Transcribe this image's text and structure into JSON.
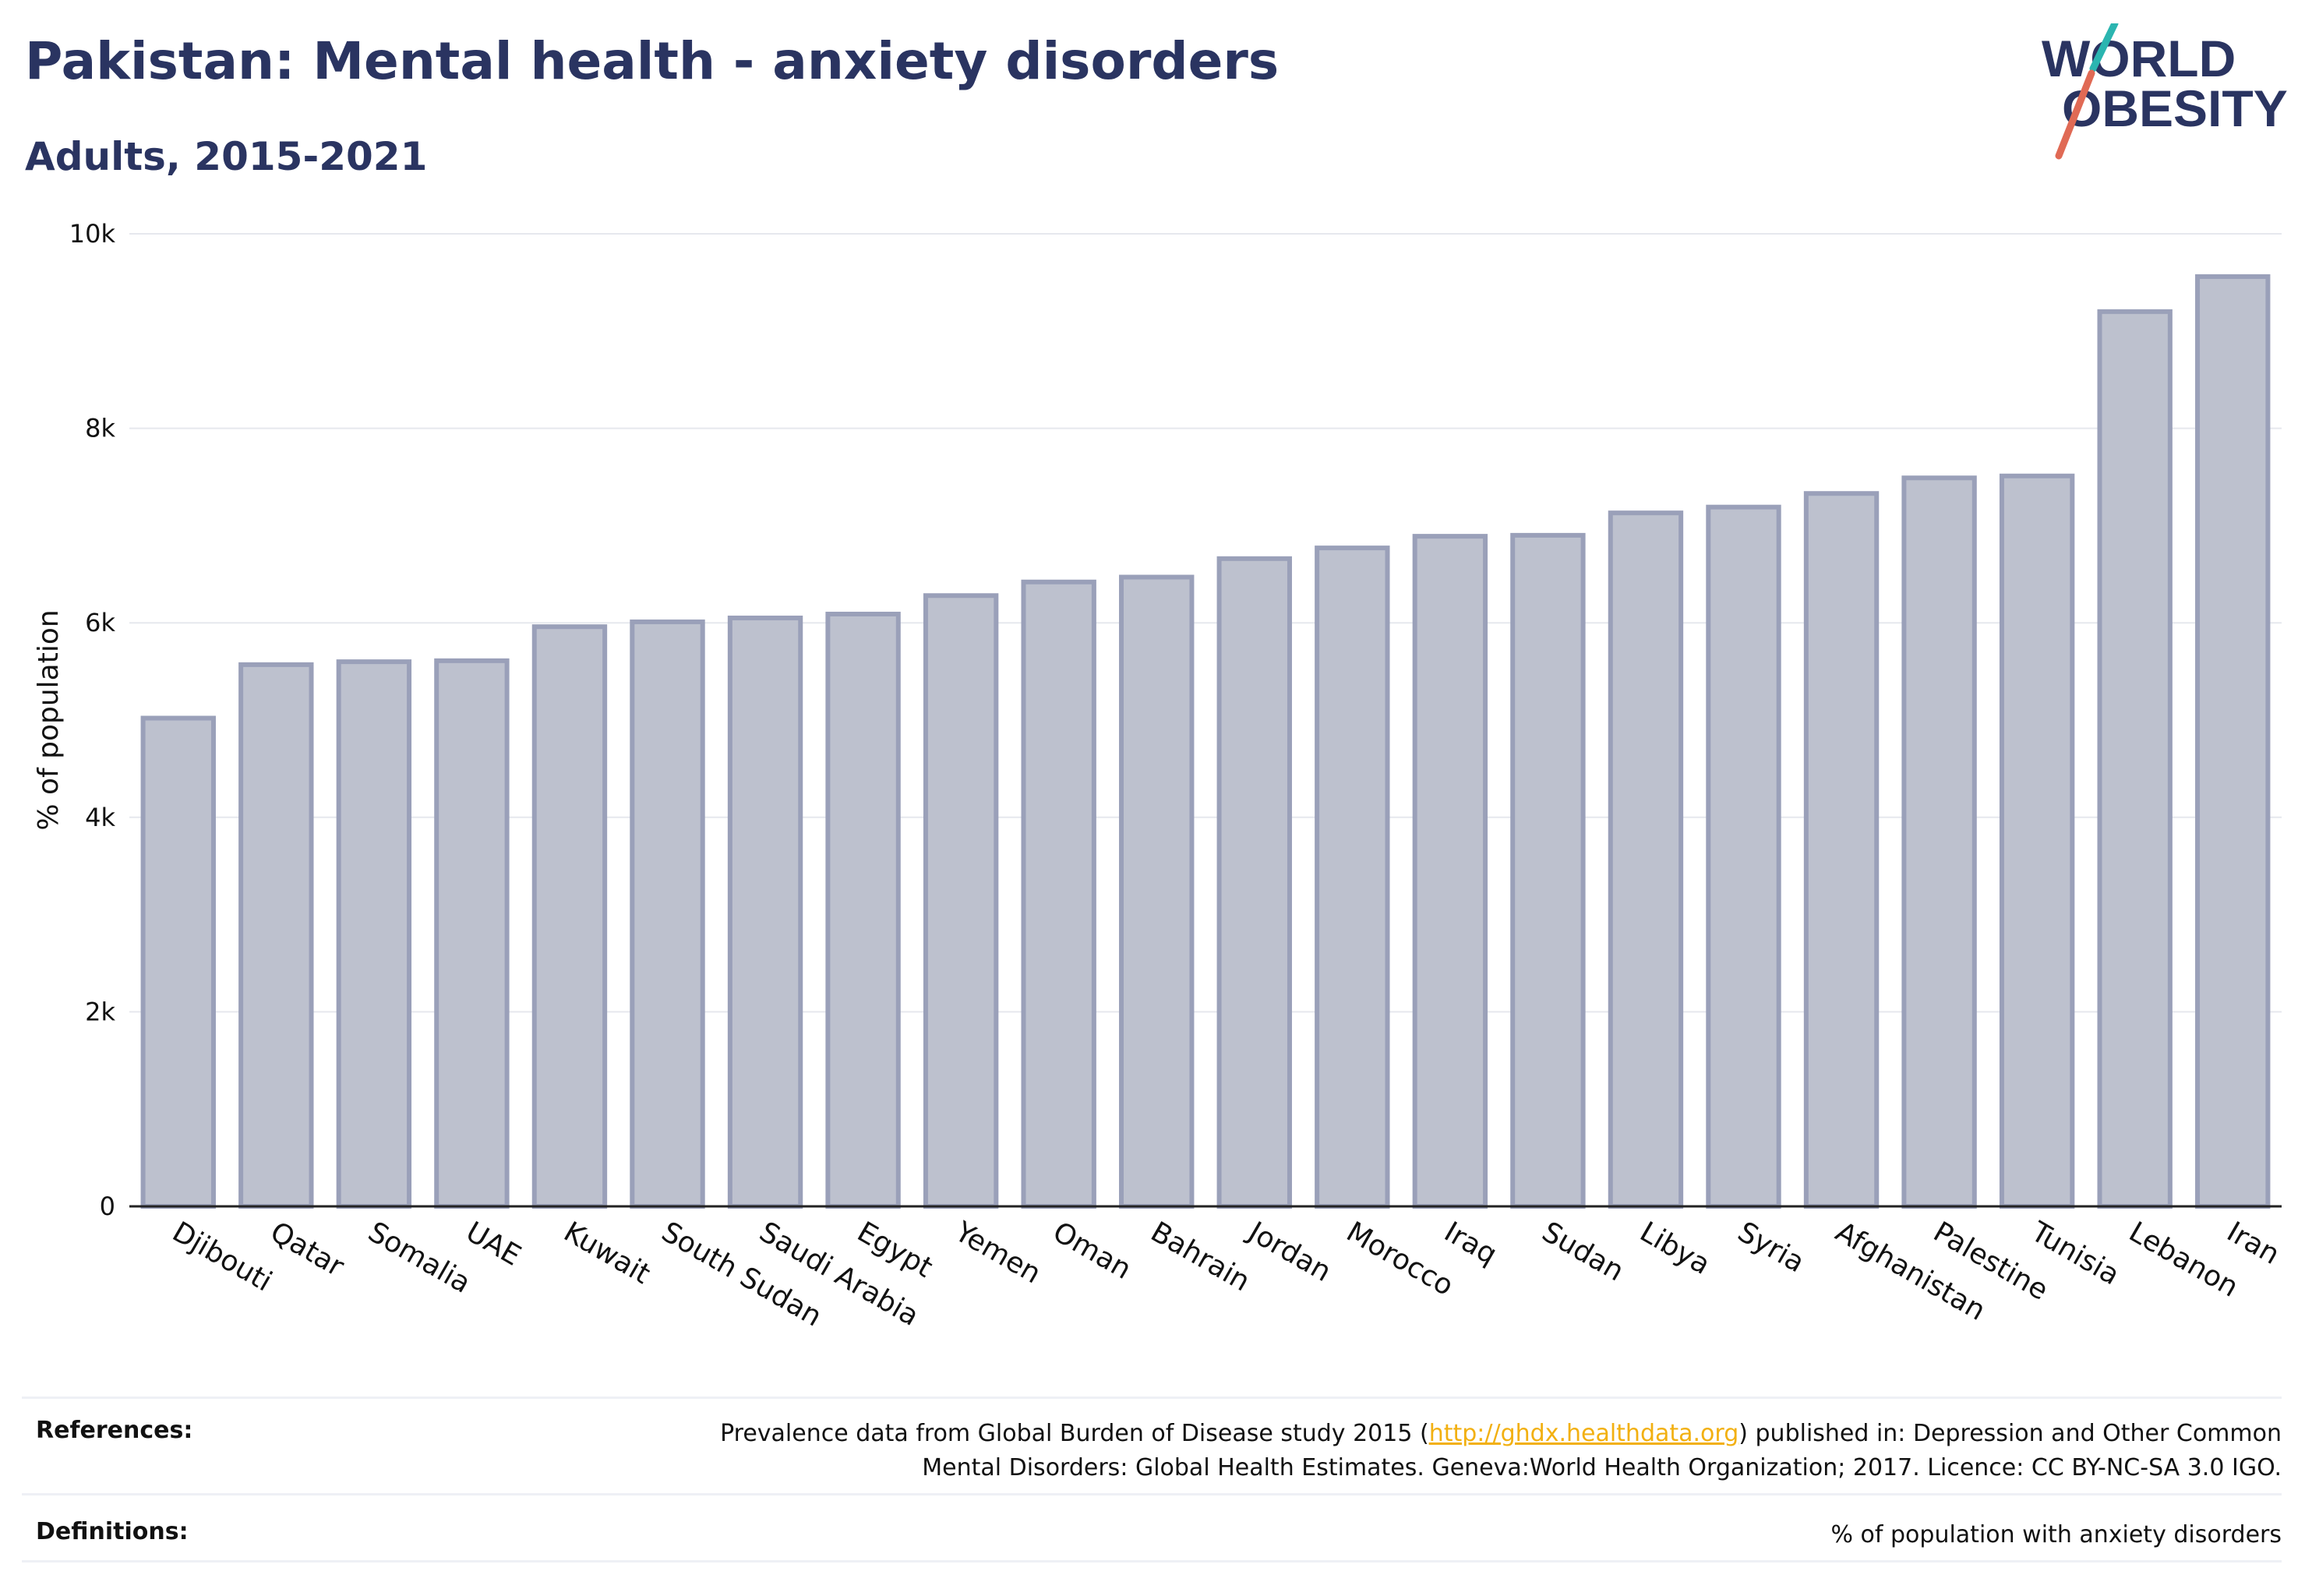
{
  "header": {
    "title": "Pakistan: Mental health - anxiety disorders",
    "subtitle": "Adults, 2015-2021"
  },
  "logo": {
    "line1": "WORLD",
    "line2": "OBESITY"
  },
  "chart_data": {
    "type": "bar",
    "ylabel": "% of population",
    "ylim": [
      0,
      10000
    ],
    "yticks": [
      0,
      2000,
      4000,
      6000,
      8000,
      10000
    ],
    "ytick_labels": [
      "0",
      "2k",
      "4k",
      "6k",
      "8k",
      "10k"
    ],
    "categories": [
      "Djibouti",
      "Qatar",
      "Somalia",
      "UAE",
      "Kuwait",
      "South Sudan",
      "Saudi Arabia",
      "Egypt",
      "Yemen",
      "Oman",
      "Bahrain",
      "Jordan",
      "Morocco",
      "Iraq",
      "Sudan",
      "Libya",
      "Syria",
      "Afghanistan",
      "Palestine",
      "Tunisia",
      "Lebanon",
      "Iran"
    ],
    "values": [
      5020,
      5570,
      5600,
      5610,
      5960,
      6010,
      6050,
      6090,
      6280,
      6420,
      6470,
      6660,
      6770,
      6890,
      6900,
      7130,
      7190,
      7330,
      7490,
      7510,
      9200,
      9560
    ],
    "bar_color": "#bdc1ce",
    "bar_edge": "#9aa0b9",
    "grid": true
  },
  "footer": {
    "references_label": "References:",
    "references_line1_pre": "Prevalence data from Global Burden of Disease study 2015 (",
    "references_link": "http://ghdx.healthdata.org",
    "references_line1_post": ") published in: Depression and Other Common",
    "references_line2": "Mental Disorders: Global Health Estimates. Geneva:World Health Organization; 2017. Licence: CC BY-NC-SA 3.0 IGO.",
    "definitions_label": "Definitions:",
    "definitions_text": "% of population with anxiety disorders"
  }
}
